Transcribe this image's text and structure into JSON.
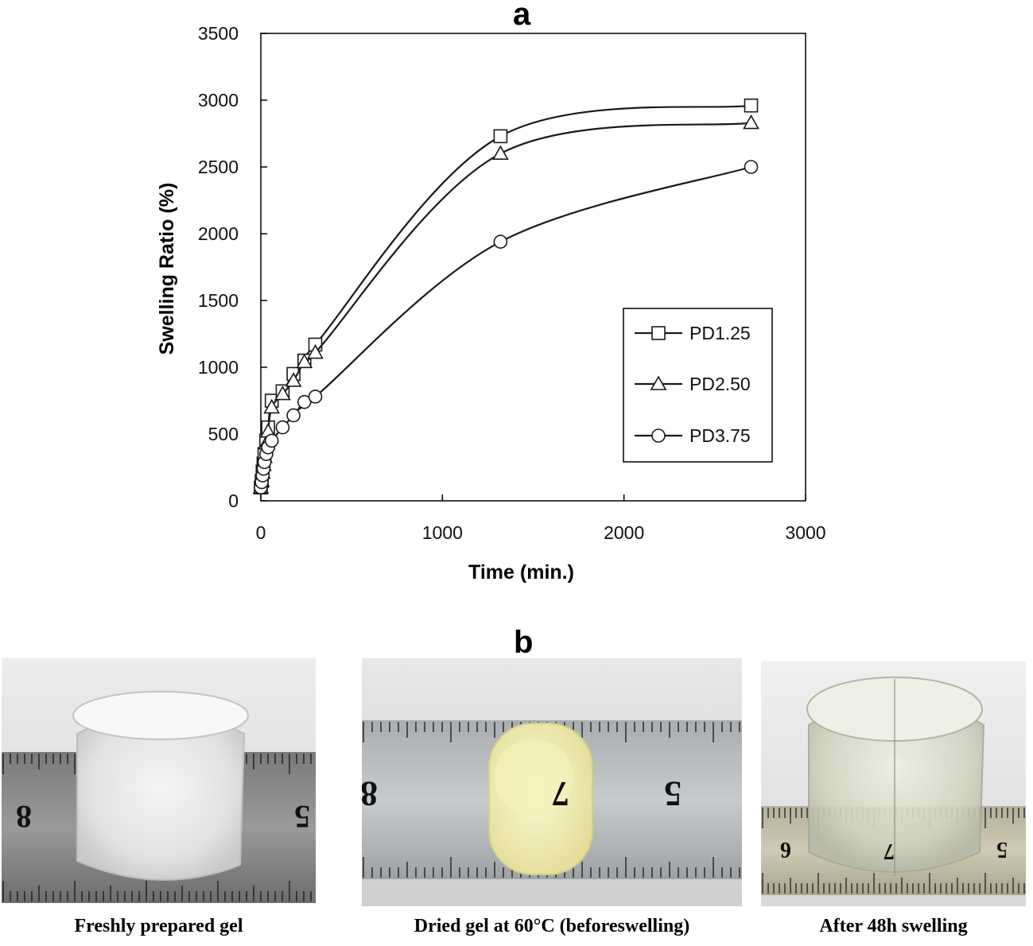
{
  "figure": {
    "panel_a_letter": "a",
    "panel_b_letter": "b"
  },
  "chart_data": {
    "type": "line",
    "title": "",
    "xlabel": "Time  (min.)",
    "ylabel": "Swelling Ratio (%)",
    "xlim": [
      0,
      3000
    ],
    "ylim": [
      0,
      3500
    ],
    "xticks": [
      "0",
      "1000",
      "2000",
      "3000"
    ],
    "yticks": [
      "0",
      "500",
      "1000",
      "1500",
      "2000",
      "2500",
      "3000",
      "3500"
    ],
    "grid": false,
    "legend_position": "center-right",
    "series": [
      {
        "name": "PD1.25",
        "marker": "square",
        "points": [
          [
            0,
            100
          ],
          [
            5,
            150
          ],
          [
            10,
            220
          ],
          [
            15,
            280
          ],
          [
            20,
            350
          ],
          [
            30,
            450
          ],
          [
            40,
            550
          ],
          [
            60,
            750
          ],
          [
            120,
            820
          ],
          [
            180,
            950
          ],
          [
            240,
            1050
          ],
          [
            300,
            1170
          ],
          [
            1320,
            2730
          ],
          [
            2700,
            2960
          ]
        ]
      },
      {
        "name": "PD2.50",
        "marker": "triangle",
        "points": [
          [
            0,
            100
          ],
          [
            5,
            150
          ],
          [
            10,
            210
          ],
          [
            15,
            270
          ],
          [
            20,
            330
          ],
          [
            30,
            430
          ],
          [
            40,
            520
          ],
          [
            60,
            700
          ],
          [
            120,
            800
          ],
          [
            180,
            900
          ],
          [
            240,
            1040
          ],
          [
            300,
            1110
          ],
          [
            1320,
            2600
          ],
          [
            2700,
            2830
          ]
        ]
      },
      {
        "name": "PD3.75",
        "marker": "circle",
        "points": [
          [
            0,
            100
          ],
          [
            5,
            140
          ],
          [
            10,
            190
          ],
          [
            15,
            240
          ],
          [
            20,
            290
          ],
          [
            30,
            350
          ],
          [
            40,
            400
          ],
          [
            60,
            450
          ],
          [
            120,
            550
          ],
          [
            180,
            640
          ],
          [
            240,
            740
          ],
          [
            300,
            780
          ],
          [
            1320,
            1940
          ],
          [
            2700,
            2500
          ]
        ]
      }
    ]
  },
  "photos": [
    {
      "caption": "Freshly prepared gel",
      "ruler_numbers": [
        "8",
        "5"
      ]
    },
    {
      "caption": "Dried gel at 60°C (beforeswelling)",
      "ruler_numbers": [
        "8",
        "7",
        "5"
      ]
    },
    {
      "caption": "After 48h swelling",
      "ruler_numbers": [
        "6",
        "7",
        "5"
      ]
    }
  ],
  "colors": {
    "axis": "#000000",
    "line": "#1a1a1a",
    "marker_fill": "#ffffff"
  }
}
